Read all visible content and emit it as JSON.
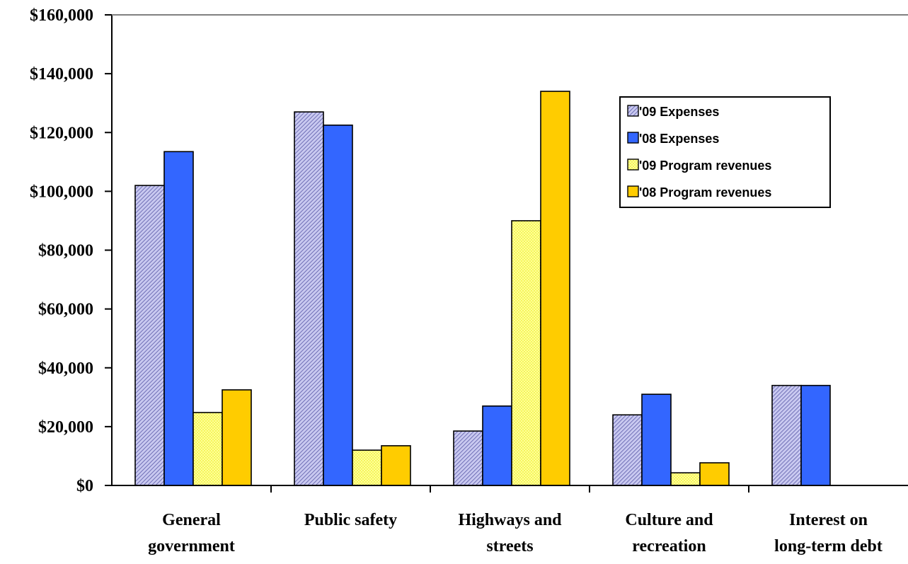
{
  "chart_data": {
    "type": "bar",
    "categories": [
      [
        "General",
        "government"
      ],
      [
        "Public safety"
      ],
      [
        "Highways and",
        "streets"
      ],
      [
        "Culture and",
        "recreation"
      ],
      [
        "Interest on",
        "long-term debt"
      ]
    ],
    "series": [
      {
        "name": "'09 Expenses",
        "color": "#b7b7e6",
        "pattern": "hatch",
        "values": [
          102000,
          127000,
          18500,
          24000,
          34000
        ]
      },
      {
        "name": "'08 Expenses",
        "color": "#3366ff",
        "pattern": "solid",
        "values": [
          113500,
          122500,
          27000,
          31000,
          34000
        ]
      },
      {
        "name": "'09 Program revenues",
        "color": "#ffff99",
        "pattern": "dots",
        "values": [
          24800,
          12000,
          90000,
          4300,
          null
        ]
      },
      {
        "name": "'08 Program revenues",
        "color": "#ffcc00",
        "pattern": "solid",
        "values": [
          32500,
          13500,
          134000,
          7700,
          null
        ]
      }
    ],
    "y_ticks": [
      "$0",
      "$20,000",
      "$40,000",
      "$60,000",
      "$80,000",
      "$100,000",
      "$120,000",
      "$140,000",
      "$160,000"
    ],
    "ylim": [
      0,
      160000
    ],
    "ytick_step": 20000,
    "grid": false,
    "legend_position": "top-right"
  }
}
